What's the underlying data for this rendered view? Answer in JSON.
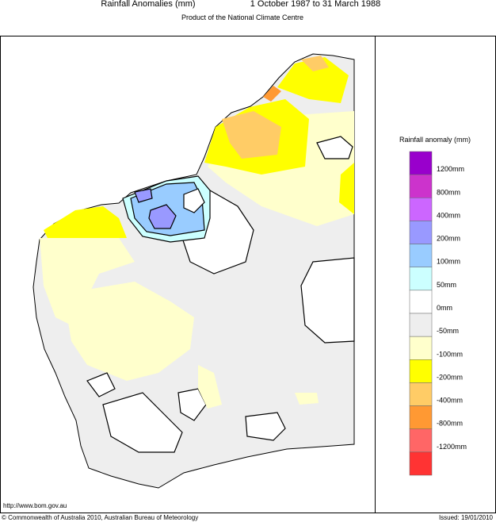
{
  "header": {
    "title": "Rainfall Anomalies (mm)",
    "period": "1 October 1987 to 31 March 1988",
    "subtitle": "Product of the National Climate Centre"
  },
  "legend": {
    "title": "Rainfall anomaly (mm)",
    "colors": [
      "#9900cc",
      "#cc33cc",
      "#cc66ff",
      "#9999ff",
      "#99ccff",
      "#ccffff",
      "#ffffff",
      "#eeeeee",
      "#ffffcc",
      "#ffff00",
      "#ffcc66",
      "#ff9933",
      "#ff6666",
      "#ff3333"
    ],
    "labels": [
      "1200mm",
      "800mm",
      "400mm",
      "200mm",
      "100mm",
      "50mm",
      "0mm",
      "-50mm",
      "-100mm",
      "-200mm",
      "-400mm",
      "-800mm",
      "-1200mm"
    ]
  },
  "footer": {
    "url": "http://www.bom.gov.au",
    "copyright": "© Commonwealth of Australia 2010, Australian Bureau of Meteorology",
    "issued": "Issued: 19/01/2010"
  }
}
